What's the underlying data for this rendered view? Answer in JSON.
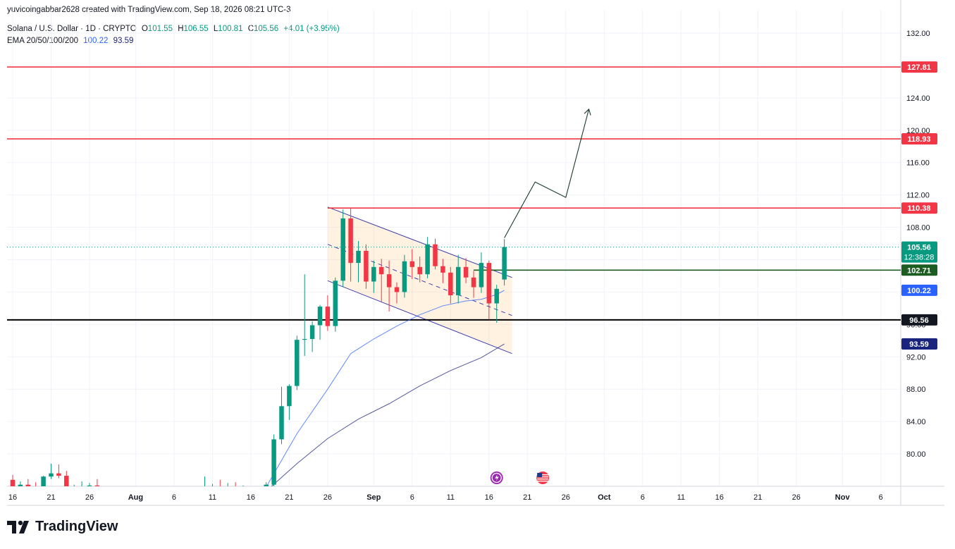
{
  "header": {
    "credit": "yuvicoingabbar2628 created with TradingView.com, Sep 18, 2026 08:21 UTC-3",
    "symbol": "Solana / U.S. Dollar · 1D · CRYPTO",
    "open_label": "O",
    "open": "101.55",
    "high_label": "H",
    "high": "106.55",
    "low_label": "L",
    "low": "100.81",
    "close_label": "C",
    "close": "105.56",
    "change": "+4.01 (+3.95%)",
    "ema_label": "EMA 20/50/100/200",
    "ema_fast": "100.22",
    "ema_slow": "93.59"
  },
  "brand": {
    "name": "TradingView"
  },
  "colors": {
    "up": "#089981",
    "down": "#f23645",
    "level": "#f23645",
    "support": "#1b5e20",
    "black_level": "#000000",
    "ema_fast": "#2962ff",
    "ema_slow": "#1a237e",
    "channel": "#3f3fb0"
  },
  "chart_data": {
    "type": "candlestick",
    "symbol": "SOLUSD",
    "timeframe": "1D",
    "ylim": [
      76,
      134
    ],
    "y_ticks": [
      80,
      84,
      88,
      92,
      96,
      100,
      104,
      108,
      112,
      116,
      120,
      124,
      128,
      132
    ],
    "x_ticks": [
      {
        "label": "16",
        "date": "2026-07-16"
      },
      {
        "label": "21",
        "date": "2026-07-21"
      },
      {
        "label": "26",
        "date": "2026-07-26"
      },
      {
        "label": "Aug",
        "date": "2026-08-01"
      },
      {
        "label": "6",
        "date": "2026-08-06"
      },
      {
        "label": "11",
        "date": "2026-08-11"
      },
      {
        "label": "16",
        "date": "2026-08-16"
      },
      {
        "label": "21",
        "date": "2026-08-21"
      },
      {
        "label": "26",
        "date": "2026-08-26"
      },
      {
        "label": "Sep",
        "date": "2026-09-01"
      },
      {
        "label": "6",
        "date": "2026-09-06"
      },
      {
        "label": "11",
        "date": "2026-09-11"
      },
      {
        "label": "16",
        "date": "2026-09-16"
      },
      {
        "label": "21",
        "date": "2026-09-21"
      },
      {
        "label": "26",
        "date": "2026-09-26"
      },
      {
        "label": "Oct",
        "date": "2026-10-01"
      },
      {
        "label": "6",
        "date": "2026-10-06"
      },
      {
        "label": "11",
        "date": "2026-10-11"
      },
      {
        "label": "16",
        "date": "2026-10-16"
      },
      {
        "label": "21",
        "date": "2026-10-21"
      },
      {
        "label": "26",
        "date": "2026-10-26"
      },
      {
        "label": "Nov",
        "date": "2026-11-01"
      },
      {
        "label": "6",
        "date": "2026-11-06"
      }
    ],
    "candles": [
      [
        "2026-07-16",
        76.8,
        77.4,
        75.6,
        75.9
      ],
      [
        "2026-07-17",
        75.9,
        76.6,
        75.4,
        76.2
      ],
      [
        "2026-07-18",
        76.2,
        76.9,
        75.9,
        76.0
      ],
      [
        "2026-07-19",
        76.0,
        76.5,
        75.6,
        75.9
      ],
      [
        "2026-07-20",
        75.9,
        77.3,
        75.7,
        77.2
      ],
      [
        "2026-07-21",
        77.2,
        78.8,
        76.9,
        77.6
      ],
      [
        "2026-07-22",
        77.6,
        78.7,
        77.0,
        77.3
      ],
      [
        "2026-07-23",
        77.3,
        77.9,
        75.3,
        75.6
      ],
      [
        "2026-07-24",
        75.6,
        76.2,
        75.2,
        75.8
      ],
      [
        "2026-07-25",
        75.8,
        76.6,
        75.5,
        75.9
      ],
      [
        "2026-07-26",
        75.9,
        76.4,
        75.4,
        76.1
      ],
      [
        "2026-07-27",
        76.1,
        76.9,
        75.0,
        75.3
      ],
      [
        "2026-07-28",
        75.3,
        75.8,
        74.9,
        75.2
      ],
      [
        "2026-07-29",
        75.2,
        75.7,
        74.7,
        75.0
      ],
      [
        "2026-07-30",
        75.0,
        75.6,
        74.8,
        75.1
      ],
      [
        "2026-07-31",
        75.1,
        75.5,
        74.6,
        74.9
      ],
      [
        "2026-08-01",
        74.9,
        75.4,
        74.6,
        75.0
      ],
      [
        "2026-08-02",
        75.0,
        75.4,
        74.7,
        75.1
      ],
      [
        "2026-08-03",
        75.1,
        75.6,
        74.8,
        74.9
      ],
      [
        "2026-08-04",
        74.9,
        75.5,
        74.6,
        75.2
      ],
      [
        "2026-08-05",
        75.2,
        75.7,
        74.9,
        75.0
      ],
      [
        "2026-08-06",
        75.0,
        75.6,
        74.7,
        75.3
      ],
      [
        "2026-08-07",
        75.3,
        75.7,
        74.9,
        75.1
      ],
      [
        "2026-08-08",
        75.1,
        75.6,
        74.8,
        75.4
      ],
      [
        "2026-08-09",
        75.4,
        75.9,
        74.9,
        75.6
      ],
      [
        "2026-08-10",
        75.6,
        77.2,
        75.3,
        75.8
      ],
      [
        "2026-08-11",
        75.8,
        76.3,
        75.4,
        76.0
      ],
      [
        "2026-08-12",
        76.0,
        76.8,
        75.5,
        75.7
      ],
      [
        "2026-08-13",
        75.7,
        76.4,
        75.2,
        75.9
      ],
      [
        "2026-08-14",
        75.9,
        76.5,
        75.3,
        75.6
      ],
      [
        "2026-08-15",
        75.6,
        76.1,
        75.2,
        75.7
      ],
      [
        "2026-08-16",
        75.7,
        76.0,
        75.2,
        75.4
      ],
      [
        "2026-08-17",
        75.4,
        75.8,
        74.8,
        75.1
      ],
      [
        "2026-08-18",
        75.1,
        76.5,
        74.9,
        76.2
      ],
      [
        "2026-08-19",
        76.2,
        82.4,
        75.9,
        81.8
      ],
      [
        "2026-08-20",
        81.8,
        88.3,
        81.2,
        85.9
      ],
      [
        "2026-08-21",
        85.9,
        88.6,
        84.2,
        88.4
      ],
      [
        "2026-08-22",
        88.4,
        94.6,
        87.9,
        94.1
      ],
      [
        "2026-08-23",
        94.1,
        102.2,
        92.1,
        94.2
      ],
      [
        "2026-08-24",
        94.2,
        96.4,
        92.6,
        95.9
      ],
      [
        "2026-08-25",
        95.9,
        98.4,
        94.1,
        98.2
      ],
      [
        "2026-08-26",
        98.2,
        99.6,
        95.2,
        95.8
      ],
      [
        "2026-08-27",
        95.8,
        101.8,
        95.1,
        101.4
      ],
      [
        "2026-08-28",
        101.4,
        110.2,
        100.6,
        109.1
      ],
      [
        "2026-08-29",
        109.1,
        110.4,
        101.3,
        103.6
      ],
      [
        "2026-08-30",
        103.6,
        106.3,
        101.2,
        105.1
      ],
      [
        "2026-08-31",
        105.1,
        105.9,
        100.4,
        101.3
      ],
      [
        "2026-09-01",
        101.3,
        103.9,
        99.9,
        103.1
      ],
      [
        "2026-09-02",
        103.1,
        104.1,
        98.8,
        102.2
      ],
      [
        "2026-09-03",
        102.2,
        103.9,
        97.6,
        100.6
      ],
      [
        "2026-09-04",
        100.6,
        101.2,
        98.6,
        100.0
      ],
      [
        "2026-09-05",
        100.0,
        104.6,
        99.3,
        103.8
      ],
      [
        "2026-09-06",
        103.8,
        105.3,
        101.6,
        103.1
      ],
      [
        "2026-09-07",
        103.1,
        104.4,
        101.2,
        102.2
      ],
      [
        "2026-09-08",
        102.2,
        106.8,
        101.7,
        105.9
      ],
      [
        "2026-09-09",
        105.9,
        106.6,
        102.8,
        103.2
      ],
      [
        "2026-09-10",
        103.2,
        104.1,
        101.1,
        102.4
      ],
      [
        "2026-09-11",
        102.4,
        103.1,
        98.6,
        99.6
      ],
      [
        "2026-09-12",
        99.6,
        104.6,
        98.6,
        103.1
      ],
      [
        "2026-09-13",
        103.1,
        104.2,
        101.1,
        101.8
      ],
      [
        "2026-09-14",
        101.8,
        102.6,
        99.3,
        100.6
      ],
      [
        "2026-09-15",
        100.6,
        104.9,
        99.9,
        103.6
      ],
      [
        "2026-09-16",
        103.6,
        103.9,
        96.6,
        98.6
      ],
      [
        "2026-09-17",
        98.6,
        100.9,
        96.2,
        100.4
      ],
      [
        "2026-09-18",
        101.55,
        106.55,
        100.81,
        105.56
      ]
    ],
    "series": [
      {
        "name": "EMA 20",
        "color": "#2962ff",
        "values": [
          [
            "2026-08-18",
            75.9
          ],
          [
            "2026-08-22",
            82.5
          ],
          [
            "2026-08-26",
            88.0
          ],
          [
            "2026-08-29",
            92.4
          ],
          [
            "2026-09-01",
            94.2
          ],
          [
            "2026-09-04",
            95.8
          ],
          [
            "2026-09-07",
            97.2
          ],
          [
            "2026-09-10",
            98.3
          ],
          [
            "2026-09-13",
            98.9
          ],
          [
            "2026-09-15",
            99.1
          ],
          [
            "2026-09-17",
            99.7
          ],
          [
            "2026-09-18",
            100.22
          ]
        ]
      },
      {
        "name": "EMA 50",
        "color": "#1a237e",
        "values": [
          [
            "2026-08-18",
            75.4
          ],
          [
            "2026-08-22",
            78.8
          ],
          [
            "2026-08-26",
            81.9
          ],
          [
            "2026-08-30",
            84.3
          ],
          [
            "2026-09-03",
            86.2
          ],
          [
            "2026-09-07",
            88.4
          ],
          [
            "2026-09-11",
            90.3
          ],
          [
            "2026-09-15",
            91.9
          ],
          [
            "2026-09-18",
            93.59
          ]
        ]
      }
    ],
    "hlines": [
      {
        "value": 127.81,
        "label": "127.81",
        "style": "level"
      },
      {
        "value": 118.93,
        "label": "118.93",
        "style": "level"
      },
      {
        "value": 102.71,
        "label": "102.71",
        "style": "support"
      },
      {
        "value": 96.56,
        "label": "96.56",
        "style": "black"
      }
    ],
    "resistance_segment": {
      "value": 110.38,
      "label": "110.38",
      "start": "2026-08-26"
    },
    "price_labels": [
      {
        "value": 105.56,
        "text": "105.56",
        "sub": "12:38:28",
        "style": "last"
      },
      {
        "value": 100.22,
        "text": "100.22",
        "style": "ema_fast"
      },
      {
        "value": 93.59,
        "text": "93.59",
        "style": "ema_slow"
      }
    ],
    "channel": {
      "upper": [
        [
          "2026-08-26",
          110.5
        ],
        [
          "2026-09-19",
          101.8
        ]
      ],
      "lower": [
        [
          "2026-08-26",
          101.4
        ],
        [
          "2026-09-19",
          92.4
        ]
      ],
      "mid": [
        [
          "2026-08-26",
          105.9
        ],
        [
          "2026-09-19",
          97.1
        ]
      ]
    },
    "projection": [
      [
        "2026-09-18",
        106.7
      ],
      [
        "2026-09-22",
        113.6
      ],
      [
        "2026-09-26",
        111.7
      ],
      [
        "2026-09-29",
        122.6
      ]
    ],
    "events": [
      {
        "date": "2026-09-17",
        "type": "crypto-event"
      },
      {
        "date": "2026-09-23",
        "type": "us-economic-event"
      }
    ]
  }
}
